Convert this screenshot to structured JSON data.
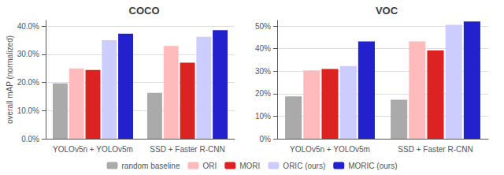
{
  "chart_data": [
    {
      "type": "bar",
      "title": "COCO",
      "ylabel": "overall mAP (normalized)",
      "categories": [
        "YOLOv5n + YOLOv5m",
        "SSD + Faster R-CNN"
      ],
      "series": [
        {
          "name": "random baseline",
          "color": "#aaaaaa",
          "values": [
            0.197,
            0.163
          ]
        },
        {
          "name": "ORI",
          "color": "#ffbbbb",
          "values": [
            0.25,
            0.33
          ]
        },
        {
          "name": "MORI",
          "color": "#dd2222",
          "values": [
            0.244,
            0.27
          ]
        },
        {
          "name": "ORIC (ours)",
          "color": "#ccccff",
          "values": [
            0.35,
            0.362
          ]
        },
        {
          "name": "MORIC (ours)",
          "color": "#2222cc",
          "values": [
            0.373,
            0.386
          ]
        }
      ],
      "ylim": [
        0.0,
        0.42
      ],
      "yticks": [
        {
          "value": 0.0,
          "label": "0.0%"
        },
        {
          "value": 0.1,
          "label": "10.0%"
        },
        {
          "value": 0.2,
          "label": "20.0%"
        },
        {
          "value": 0.3,
          "label": "30.0%"
        },
        {
          "value": 0.4,
          "label": "40.0%"
        }
      ],
      "grid": true,
      "legend": "bottom"
    },
    {
      "type": "bar",
      "title": "VOC",
      "categories": [
        "YOLOv5n + YOLOv5m",
        "SSD + Faster R-CNN"
      ],
      "series": [
        {
          "name": "random baseline",
          "color": "#aaaaaa",
          "values": [
            0.188,
            0.173
          ]
        },
        {
          "name": "ORI",
          "color": "#ffbbbb",
          "values": [
            0.304,
            0.432
          ]
        },
        {
          "name": "MORI",
          "color": "#dd2222",
          "values": [
            0.31,
            0.392
          ]
        },
        {
          "name": "ORIC (ours)",
          "color": "#ccccff",
          "values": [
            0.323,
            0.506
          ]
        },
        {
          "name": "MORIC (ours)",
          "color": "#2222cc",
          "values": [
            0.432,
            0.521
          ]
        }
      ],
      "ylim": [
        0.0,
        0.525
      ],
      "yticks": [
        {
          "value": 0.0,
          "label": "0%"
        },
        {
          "value": 0.1,
          "label": "10%"
        },
        {
          "value": 0.2,
          "label": "20%"
        },
        {
          "value": 0.3,
          "label": "30%"
        },
        {
          "value": 0.4,
          "label": "40%"
        },
        {
          "value": 0.5,
          "label": "50%"
        }
      ],
      "grid": true,
      "legend": "bottom"
    }
  ]
}
